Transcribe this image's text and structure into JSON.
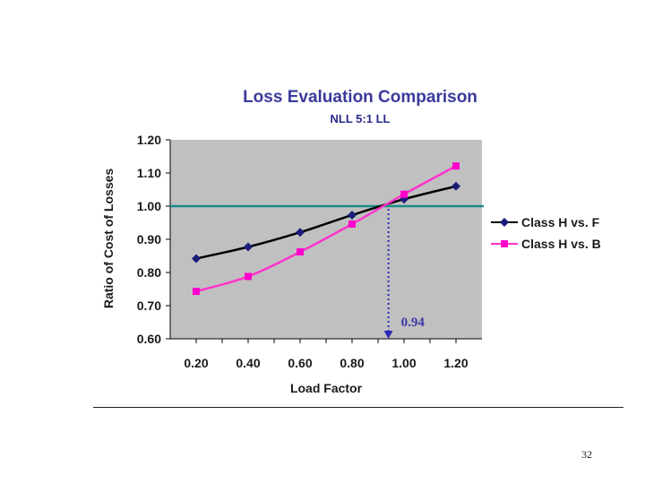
{
  "chart_data": {
    "type": "line",
    "title": "Loss Evaluation Comparison",
    "subtitle": "NLL 5:1 LL",
    "xlabel": "Load Factor",
    "ylabel": "Ratio of Cost of Losses",
    "xlim": [
      0.1,
      1.3
    ],
    "ylim": [
      0.6,
      1.2
    ],
    "x_ticks": [
      0.2,
      0.4,
      0.6,
      0.8,
      1.0,
      1.2
    ],
    "x_tick_labels": [
      "0.20",
      "0.40",
      "0.60",
      "0.80",
      "1.00",
      "1.20"
    ],
    "y_ticks": [
      0.6,
      0.7,
      0.8,
      0.9,
      1.0,
      1.1,
      1.2
    ],
    "y_tick_labels": [
      "0.60",
      "0.70",
      "0.80",
      "0.90",
      "1.00",
      "1.10",
      "1.20"
    ],
    "grid": false,
    "plot_background": "#c0c0c0",
    "legend_position": "right",
    "series": [
      {
        "name": "Class H vs. F",
        "color": "#000000",
        "marker_color": "#1c1c7a",
        "marker": "diamond",
        "x": [
          0.2,
          0.4,
          0.6,
          0.8,
          1.0,
          1.2
        ],
        "values": [
          0.842,
          0.877,
          0.921,
          0.973,
          1.021,
          1.06
        ]
      },
      {
        "name": "Class H vs. B",
        "color": "#ff33cc",
        "marker_color": "#ff00cc",
        "marker": "square",
        "x": [
          0.2,
          0.4,
          0.6,
          0.8,
          1.0,
          1.2
        ],
        "values": [
          0.743,
          0.788,
          0.862,
          0.946,
          1.036,
          1.121
        ]
      }
    ],
    "reference_line": {
      "y": 1.0,
      "color": "#1a8a8a"
    },
    "annotation": {
      "text": "0.94",
      "x": 0.94,
      "color": "#3b3ba6"
    }
  },
  "page_number": "32"
}
